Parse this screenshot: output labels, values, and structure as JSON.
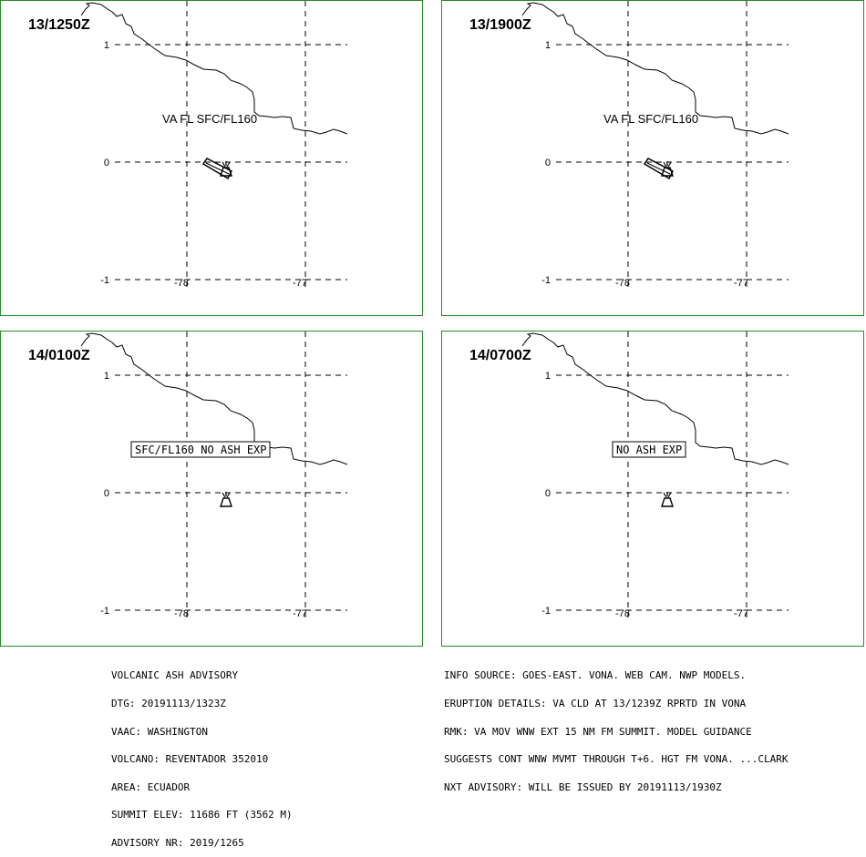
{
  "panels": [
    {
      "time": "13/1250Z",
      "label": "VA FL SFC/FL160",
      "boxed": false,
      "plume": true
    },
    {
      "time": "13/1900Z",
      "label": "VA FL SFC/FL160",
      "boxed": false,
      "plume": true
    },
    {
      "time": "14/0100Z",
      "label": "SFC/FL160 NO ASH EXP",
      "boxed": true,
      "plume": false
    },
    {
      "time": "14/0700Z",
      "label": "NO ASH EXP",
      "boxed": true,
      "plume": false
    }
  ],
  "grid": {
    "lat_labels": [
      "1",
      "0",
      "-1"
    ],
    "lon_labels": [
      "-78",
      "-77"
    ]
  },
  "advisory_left": [
    "VOLCANIC ASH ADVISORY",
    "DTG: 20191113/1323Z",
    "VAAC: WASHINGTON",
    "VOLCANO: REVENTADOR 352010",
    "AREA: ECUADOR",
    "SUMMIT ELEV: 11686 FT (3562 M)",
    "ADVISORY NR: 2019/1265"
  ],
  "advisory_right": [
    "INFO SOURCE: GOES-EAST. VONA. WEB CAM. NWP MODELS.",
    "ERUPTION DETAILS: VA CLD AT 13/1239Z RPRTD IN VONA",
    "RMK: VA MOV WNW EXT 15 NM FM SUMMIT. MODEL GUIDANCE",
    "SUGGESTS CONT WNW MVMT THROUGH T+6. HGT FM VONA. ...CLARK",
    "NXT ADVISORY: WILL BE ISSUED BY 20191113/1930Z"
  ],
  "colors": {
    "panel_border": "#2a8a2a",
    "ink": "#000000"
  }
}
